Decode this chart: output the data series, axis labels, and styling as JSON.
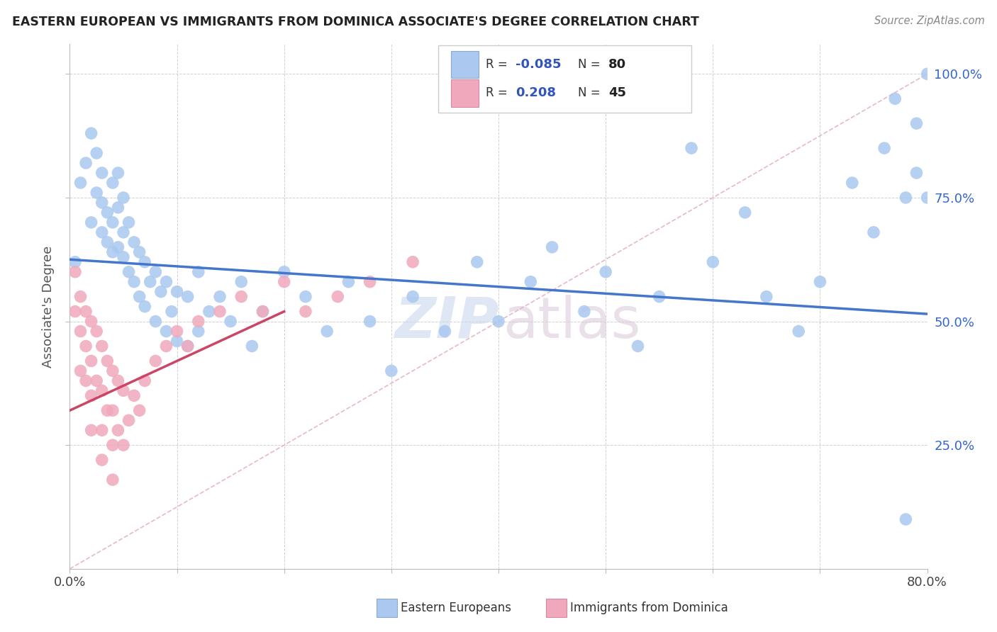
{
  "title": "EASTERN EUROPEAN VS IMMIGRANTS FROM DOMINICA ASSOCIATE'S DEGREE CORRELATION CHART",
  "source": "Source: ZipAtlas.com",
  "ylabel": "Associate's Degree",
  "blue_color": "#aac8f0",
  "pink_color": "#f0a8bc",
  "blue_line_color": "#4477cc",
  "pink_line_color": "#cc4466",
  "ref_line_color": "#e8b8c8",
  "xmin": 0.0,
  "xmax": 0.8,
  "ymin": 0.0,
  "ymax": 1.06,
  "blue_x": [
    0.005,
    0.01,
    0.015,
    0.02,
    0.02,
    0.025,
    0.025,
    0.03,
    0.03,
    0.03,
    0.035,
    0.035,
    0.04,
    0.04,
    0.04,
    0.045,
    0.045,
    0.045,
    0.05,
    0.05,
    0.05,
    0.055,
    0.055,
    0.06,
    0.06,
    0.065,
    0.065,
    0.07,
    0.07,
    0.075,
    0.08,
    0.08,
    0.085,
    0.09,
    0.09,
    0.095,
    0.1,
    0.1,
    0.11,
    0.11,
    0.12,
    0.12,
    0.13,
    0.14,
    0.15,
    0.16,
    0.17,
    0.18,
    0.2,
    0.22,
    0.24,
    0.26,
    0.28,
    0.3,
    0.32,
    0.35,
    0.38,
    0.4,
    0.43,
    0.45,
    0.48,
    0.5,
    0.53,
    0.55,
    0.58,
    0.6,
    0.63,
    0.65,
    0.68,
    0.7,
    0.73,
    0.75,
    0.76,
    0.77,
    0.78,
    0.78,
    0.79,
    0.79,
    0.8,
    0.8
  ],
  "blue_y": [
    0.62,
    0.78,
    0.82,
    0.7,
    0.88,
    0.76,
    0.84,
    0.68,
    0.74,
    0.8,
    0.66,
    0.72,
    0.64,
    0.7,
    0.78,
    0.65,
    0.73,
    0.8,
    0.63,
    0.68,
    0.75,
    0.6,
    0.7,
    0.58,
    0.66,
    0.55,
    0.64,
    0.53,
    0.62,
    0.58,
    0.5,
    0.6,
    0.56,
    0.48,
    0.58,
    0.52,
    0.46,
    0.56,
    0.45,
    0.55,
    0.48,
    0.6,
    0.52,
    0.55,
    0.5,
    0.58,
    0.45,
    0.52,
    0.6,
    0.55,
    0.48,
    0.58,
    0.5,
    0.4,
    0.55,
    0.48,
    0.62,
    0.5,
    0.58,
    0.65,
    0.52,
    0.6,
    0.45,
    0.55,
    0.85,
    0.62,
    0.72,
    0.55,
    0.48,
    0.58,
    0.78,
    0.68,
    0.85,
    0.95,
    0.75,
    0.1,
    0.8,
    0.9,
    0.75,
    1.0
  ],
  "pink_x": [
    0.005,
    0.005,
    0.01,
    0.01,
    0.01,
    0.015,
    0.015,
    0.015,
    0.02,
    0.02,
    0.02,
    0.02,
    0.025,
    0.025,
    0.03,
    0.03,
    0.03,
    0.03,
    0.035,
    0.035,
    0.04,
    0.04,
    0.04,
    0.04,
    0.045,
    0.045,
    0.05,
    0.05,
    0.055,
    0.06,
    0.065,
    0.07,
    0.08,
    0.09,
    0.1,
    0.11,
    0.12,
    0.14,
    0.16,
    0.18,
    0.2,
    0.22,
    0.25,
    0.28,
    0.32
  ],
  "pink_y": [
    0.6,
    0.52,
    0.55,
    0.48,
    0.4,
    0.52,
    0.45,
    0.38,
    0.5,
    0.42,
    0.35,
    0.28,
    0.48,
    0.38,
    0.45,
    0.36,
    0.28,
    0.22,
    0.42,
    0.32,
    0.4,
    0.32,
    0.25,
    0.18,
    0.38,
    0.28,
    0.36,
    0.25,
    0.3,
    0.35,
    0.32,
    0.38,
    0.42,
    0.45,
    0.48,
    0.45,
    0.5,
    0.52,
    0.55,
    0.52,
    0.58,
    0.52,
    0.55,
    0.58,
    0.62
  ],
  "blue_trend_x0": 0.0,
  "blue_trend_y0": 0.625,
  "blue_trend_x1": 0.8,
  "blue_trend_y1": 0.515,
  "pink_trend_x0": 0.0,
  "pink_trend_y0": 0.32,
  "pink_trend_x1": 0.2,
  "pink_trend_y1": 0.52,
  "ref_line_x0": 0.0,
  "ref_line_y0": 0.0,
  "ref_line_x1": 0.8,
  "ref_line_y1": 1.0,
  "legend_blue_R": "-0.085",
  "legend_blue_N": "80",
  "legend_pink_R": "0.208",
  "legend_pink_N": "45",
  "R_color": "#3355bb",
  "N_color": "#222222",
  "watermark_zip_color": "#c8d8ec",
  "watermark_atlas_color": "#d8c8d8"
}
